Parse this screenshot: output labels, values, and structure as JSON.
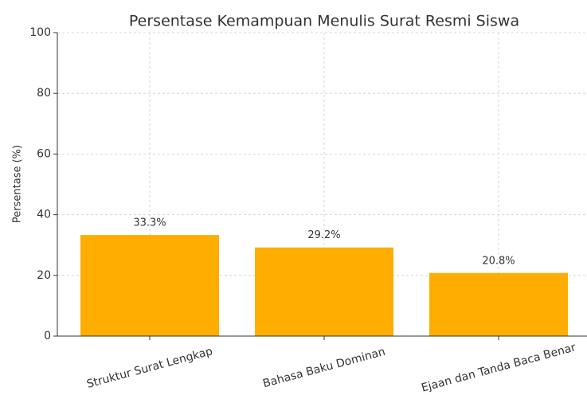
{
  "chart_data": {
    "type": "bar",
    "title": "Persentase Kemampuan Menulis Surat Resmi Siswa",
    "ylabel": "Persentase (%)",
    "categories": [
      "Struktur Surat Lengkap",
      "Bahasa Baku Dominan",
      "Ejaan dan Tanda Baca Benar"
    ],
    "values": [
      33.3,
      29.2,
      20.8
    ],
    "value_labels": [
      "33.3%",
      "29.2%",
      "20.8%"
    ],
    "color": "#ffad00",
    "ylim": [
      0,
      100
    ],
    "yticks": [
      0,
      20,
      40,
      60,
      80,
      100
    ],
    "grid": true
  }
}
